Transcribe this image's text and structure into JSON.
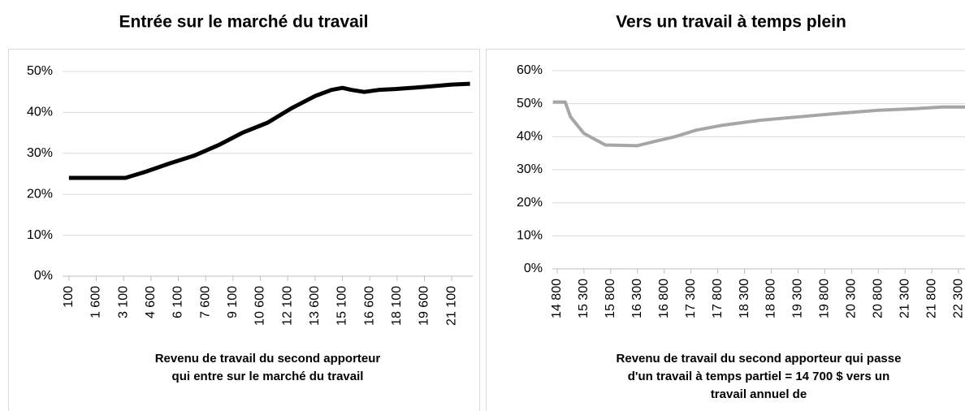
{
  "chart_data": [
    {
      "type": "line",
      "title": "Entrée sur le marché du travail",
      "x_label": [
        "Revenu de travail du second apporteur",
        "qui entre sur le marché du travail"
      ],
      "x": [
        100,
        3200,
        4300,
        5600,
        7000,
        8300,
        9600,
        11000,
        12300,
        13600,
        14500,
        15100,
        15600,
        16300,
        17100,
        18000,
        18900,
        19800,
        21100,
        22100
      ],
      "series": [
        {
          "name": "Entrée",
          "color": "#000000",
          "values": [
            24,
            24,
            25.5,
            27.5,
            29.5,
            32,
            35,
            37.5,
            41,
            44,
            45.5,
            46,
            45.5,
            45,
            45.5,
            45.7,
            46,
            46.3,
            46.8,
            47
          ]
        }
      ],
      "xlim": [
        -250,
        22250
      ],
      "xticks": [
        100,
        {
          "value": 1600,
          "label": "1 600"
        },
        {
          "value": 3100,
          "label": "3 100"
        },
        {
          "value": 4600,
          "label": "4 600"
        },
        {
          "value": 6100,
          "label": "6 100"
        },
        {
          "value": 7600,
          "label": "7 600"
        },
        {
          "value": 9100,
          "label": "9 100"
        },
        {
          "value": 10600,
          "label": "10 600"
        },
        {
          "value": 12100,
          "label": "12 100"
        },
        {
          "value": 13600,
          "label": "13 600"
        },
        {
          "value": 15100,
          "label": "15 100"
        },
        {
          "value": 16600,
          "label": "16 600"
        },
        {
          "value": 18100,
          "label": "18 100"
        },
        {
          "value": 19600,
          "label": "19 600"
        },
        {
          "value": 21100,
          "label": "21 100"
        }
      ],
      "ylim": [
        0,
        50
      ],
      "yticks": [
        {
          "value": 0,
          "label": "0%"
        },
        {
          "value": 10,
          "label": "10%"
        },
        {
          "value": 20,
          "label": "20%"
        },
        {
          "value": 30,
          "label": "30%"
        },
        {
          "value": 40,
          "label": "40%"
        },
        {
          "value": 50,
          "label": "50%"
        }
      ],
      "grid": true,
      "line_width": 5
    },
    {
      "type": "line",
      "title": "Vers un travail à temps plein",
      "x_label": [
        "Revenu de travail du second apporteur qui passe",
        "d'un travail à temps partiel = 14 700 $ vers un",
        "travail annuel de"
      ],
      "x": [
        14720,
        14950,
        15050,
        15300,
        15700,
        16300,
        16600,
        17000,
        17400,
        17900,
        18600,
        19300,
        20000,
        20800,
        21500,
        22000,
        22420
      ],
      "series": [
        {
          "name": "Temps plein",
          "color": "#a6a6a6",
          "values": [
            50.5,
            50.5,
            46,
            41,
            37.5,
            37.3,
            38.5,
            40,
            42,
            43.5,
            45,
            46,
            47,
            48,
            48.5,
            49,
            49
          ]
        }
      ],
      "xlim": [
        14710,
        22420
      ],
      "xticks": [
        {
          "value": 14800,
          "label": "14 800"
        },
        {
          "value": 15300,
          "label": "15 300"
        },
        {
          "value": 15800,
          "label": "15 800"
        },
        {
          "value": 16300,
          "label": "16 300"
        },
        {
          "value": 16800,
          "label": "16 800"
        },
        {
          "value": 17300,
          "label": "17 300"
        },
        {
          "value": 17800,
          "label": "17 800"
        },
        {
          "value": 18300,
          "label": "18 300"
        },
        {
          "value": 18800,
          "label": "18 800"
        },
        {
          "value": 19300,
          "label": "19 300"
        },
        {
          "value": 19800,
          "label": "19 800"
        },
        {
          "value": 20300,
          "label": "20 300"
        },
        {
          "value": 20800,
          "label": "20 800"
        },
        {
          "value": 21300,
          "label": "21 300"
        },
        {
          "value": 21800,
          "label": "21 800"
        },
        {
          "value": 22300,
          "label": "22 300"
        }
      ],
      "ylim": [
        0,
        60
      ],
      "yticks": [
        {
          "value": 0,
          "label": "0%"
        },
        {
          "value": 10,
          "label": "10%"
        },
        {
          "value": 20,
          "label": "20%"
        },
        {
          "value": 30,
          "label": "30%"
        },
        {
          "value": 40,
          "label": "40%"
        },
        {
          "value": 50,
          "label": "50%"
        },
        {
          "value": 60,
          "label": "60%"
        }
      ],
      "grid": true,
      "line_width": 4
    }
  ]
}
